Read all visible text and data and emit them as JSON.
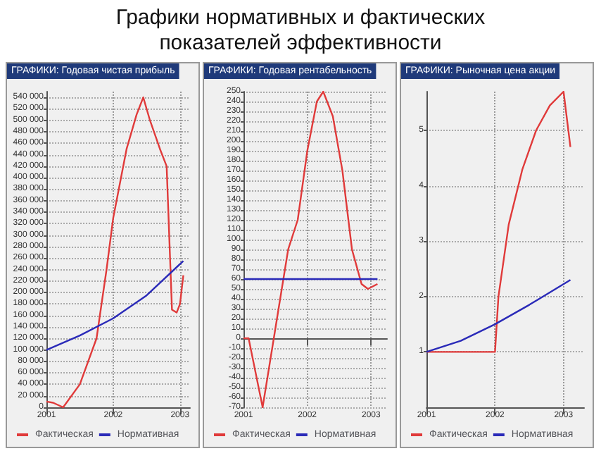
{
  "chart_data": [
    {
      "type": "other",
      "title": "Графики нормативных и фактических показателей эффективности"
    },
    {
      "type": "line",
      "title": "ГРАФИКИ: Годовая чистая прибыль",
      "xlim": [
        2001,
        2003.15
      ],
      "xticks": [
        2001,
        2002,
        2003
      ],
      "ylim": [
        0,
        550000
      ],
      "yticks": [
        {
          "value": 0,
          "label": "0"
        },
        {
          "value": 20000,
          "label": "20 000"
        },
        {
          "value": 40000,
          "label": "40 000"
        },
        {
          "value": 60000,
          "label": "60 000"
        },
        {
          "value": 80000,
          "label": "80 000"
        },
        {
          "value": 100000,
          "label": "100 000"
        },
        {
          "value": 120000,
          "label": "120 000"
        },
        {
          "value": 140000,
          "label": "140 000"
        },
        {
          "value": 160000,
          "label": "160 000"
        },
        {
          "value": 180000,
          "label": "180 000"
        },
        {
          "value": 200000,
          "label": "200 000"
        },
        {
          "value": 220000,
          "label": "220 000"
        },
        {
          "value": 240000,
          "label": "240 000"
        },
        {
          "value": 260000,
          "label": "260 000"
        },
        {
          "value": 280000,
          "label": "280 000"
        },
        {
          "value": 300000,
          "label": "300 000"
        },
        {
          "value": 320000,
          "label": "320 000"
        },
        {
          "value": 340000,
          "label": "340 000"
        },
        {
          "value": 360000,
          "label": "360 000"
        },
        {
          "value": 380000,
          "label": "380 000"
        },
        {
          "value": 400000,
          "label": "400 000"
        },
        {
          "value": 420000,
          "label": "420 000"
        },
        {
          "value": 440000,
          "label": "440 000"
        },
        {
          "value": 460000,
          "label": "460 000"
        },
        {
          "value": 480000,
          "label": "480 000"
        },
        {
          "value": 500000,
          "label": "500 000"
        },
        {
          "value": 520000,
          "label": "520 000"
        },
        {
          "value": 540000,
          "label": "540 000"
        }
      ],
      "grid": true,
      "legend": "bottom",
      "marker": "none",
      "series": [
        {
          "name": "Фактическая",
          "color": "#e03a3a",
          "x": [
            2001,
            2001.1,
            2001.25,
            2001.5,
            2001.75,
            2001.9,
            2002,
            2002.2,
            2002.35,
            2002.45,
            2002.55,
            2002.7,
            2002.8,
            2002.88,
            2002.95,
            2003,
            2003.05
          ],
          "values": [
            10000,
            8000,
            0,
            40000,
            120000,
            240000,
            330000,
            450000,
            510000,
            540000,
            500000,
            450000,
            420000,
            170000,
            165000,
            180000,
            230000
          ]
        },
        {
          "name": "Нормативная",
          "color": "#2a2ab8",
          "x": [
            2001,
            2001.5,
            2002,
            2002.5,
            2003.05
          ],
          "values": [
            100000,
            125000,
            155000,
            195000,
            255000
          ]
        }
      ]
    },
    {
      "type": "line",
      "title": "ГРАФИКИ: Годовая рентабельность",
      "xlim": [
        2001,
        2003.25
      ],
      "xticks": [
        2001,
        2002,
        2003
      ],
      "ylim": [
        -70,
        250
      ],
      "yticks": [
        -70,
        -60,
        -50,
        -40,
        -30,
        -20,
        -10,
        0,
        10,
        20,
        30,
        40,
        50,
        60,
        70,
        80,
        90,
        100,
        110,
        120,
        130,
        140,
        150,
        160,
        170,
        180,
        190,
        200,
        210,
        220,
        230,
        240,
        250
      ],
      "grid": true,
      "legend": "bottom",
      "marker": "none",
      "series": [
        {
          "name": "Фактическая",
          "color": "#e03a3a",
          "x": [
            2001,
            2001.08,
            2001.3,
            2001.5,
            2001.7,
            2001.85,
            2002,
            2002.15,
            2002.25,
            2002.4,
            2002.55,
            2002.7,
            2002.85,
            2002.95,
            2003.1
          ],
          "values": [
            0,
            0,
            -70,
            10,
            90,
            120,
            190,
            240,
            250,
            225,
            170,
            90,
            55,
            50,
            55
          ]
        },
        {
          "name": "Нормативная",
          "color": "#2a2ab8",
          "x": [
            2001,
            2003.1
          ],
          "values": [
            60,
            60
          ]
        }
      ]
    },
    {
      "type": "line",
      "title": "ГРАФИКИ: Рыночная цена акции",
      "xlim": [
        2001,
        2003.3
      ],
      "xticks": [
        2001,
        2002,
        2003
      ],
      "ylim": [
        0,
        5.7
      ],
      "yticks": [
        1,
        2,
        3,
        4,
        5
      ],
      "grid": true,
      "legend": "bottom",
      "marker": "none",
      "series": [
        {
          "name": "Фактическая",
          "color": "#e03a3a",
          "x": [
            2001,
            2002,
            2002.05,
            2002.2,
            2002.4,
            2002.6,
            2002.8,
            2003,
            2003.1
          ],
          "values": [
            1,
            1,
            2,
            3.3,
            4.3,
            5,
            5.45,
            5.7,
            4.7
          ]
        },
        {
          "name": "Нормативная",
          "color": "#2a2ab8",
          "x": [
            2001,
            2001.5,
            2002,
            2002.5,
            2003.1
          ],
          "values": [
            1,
            1.2,
            1.5,
            1.85,
            2.3
          ]
        }
      ]
    }
  ]
}
